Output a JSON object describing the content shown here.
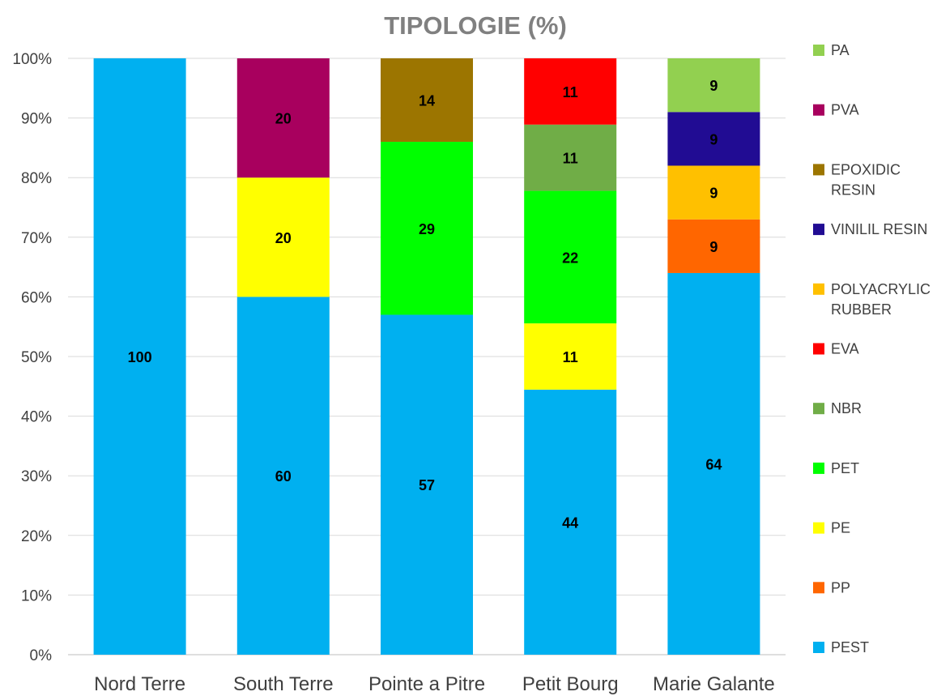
{
  "chart_data": {
    "type": "bar",
    "stacked": "percent",
    "title": "TIPOLOGIE (%)",
    "xlabel": "",
    "ylabel": "",
    "ylim": [
      0,
      100
    ],
    "y_ticks": [
      "0%",
      "10%",
      "20%",
      "30%",
      "40%",
      "50%",
      "60%",
      "70%",
      "80%",
      "90%",
      "100%"
    ],
    "grid": true,
    "legend_position": "right",
    "categories": [
      "Nord Terre",
      "South Terre",
      "Pointe a Pitre",
      "Petit Bourg",
      "Marie Galante"
    ],
    "series": [
      {
        "name": "PEST",
        "color": "#00B0F0",
        "values": [
          100,
          60,
          57,
          44,
          64
        ]
      },
      {
        "name": "PP",
        "color": "#FF6600",
        "values": [
          0,
          0,
          0,
          0,
          9
        ]
      },
      {
        "name": "PE",
        "color": "#FFFF00",
        "values": [
          0,
          20,
          0,
          11,
          0
        ]
      },
      {
        "name": "PET",
        "color": "#00FF00",
        "values": [
          0,
          0,
          29,
          22,
          0
        ]
      },
      {
        "name": "NBR",
        "color": "#70AD47",
        "values": [
          0,
          0,
          0,
          11,
          0
        ]
      },
      {
        "name": "EVA",
        "color": "#FF0000",
        "values": [
          0,
          0,
          0,
          11,
          0
        ]
      },
      {
        "name": "POLYACRYLIC RUBBER",
        "label_lines": [
          "POLYACRYLIC",
          "RUBBER"
        ],
        "color": "#FFC000",
        "values": [
          0,
          0,
          0,
          0,
          9
        ]
      },
      {
        "name": "VINILIL RESIN",
        "label_lines": [
          "VINILIL RESIN"
        ],
        "color": "#210C93",
        "values": [
          0,
          0,
          0,
          0,
          9
        ]
      },
      {
        "name": "EPOXIDIC RESIN",
        "label_lines": [
          "EPOXIDIC",
          "RESIN"
        ],
        "color": "#9C7500",
        "values": [
          0,
          0,
          14,
          0,
          0
        ]
      },
      {
        "name": "PVA",
        "color": "#A8005E",
        "values": [
          0,
          20,
          0,
          0,
          0
        ]
      },
      {
        "name": "PA",
        "color": "#92D050",
        "values": [
          0,
          0,
          0,
          0,
          9
        ]
      }
    ]
  }
}
